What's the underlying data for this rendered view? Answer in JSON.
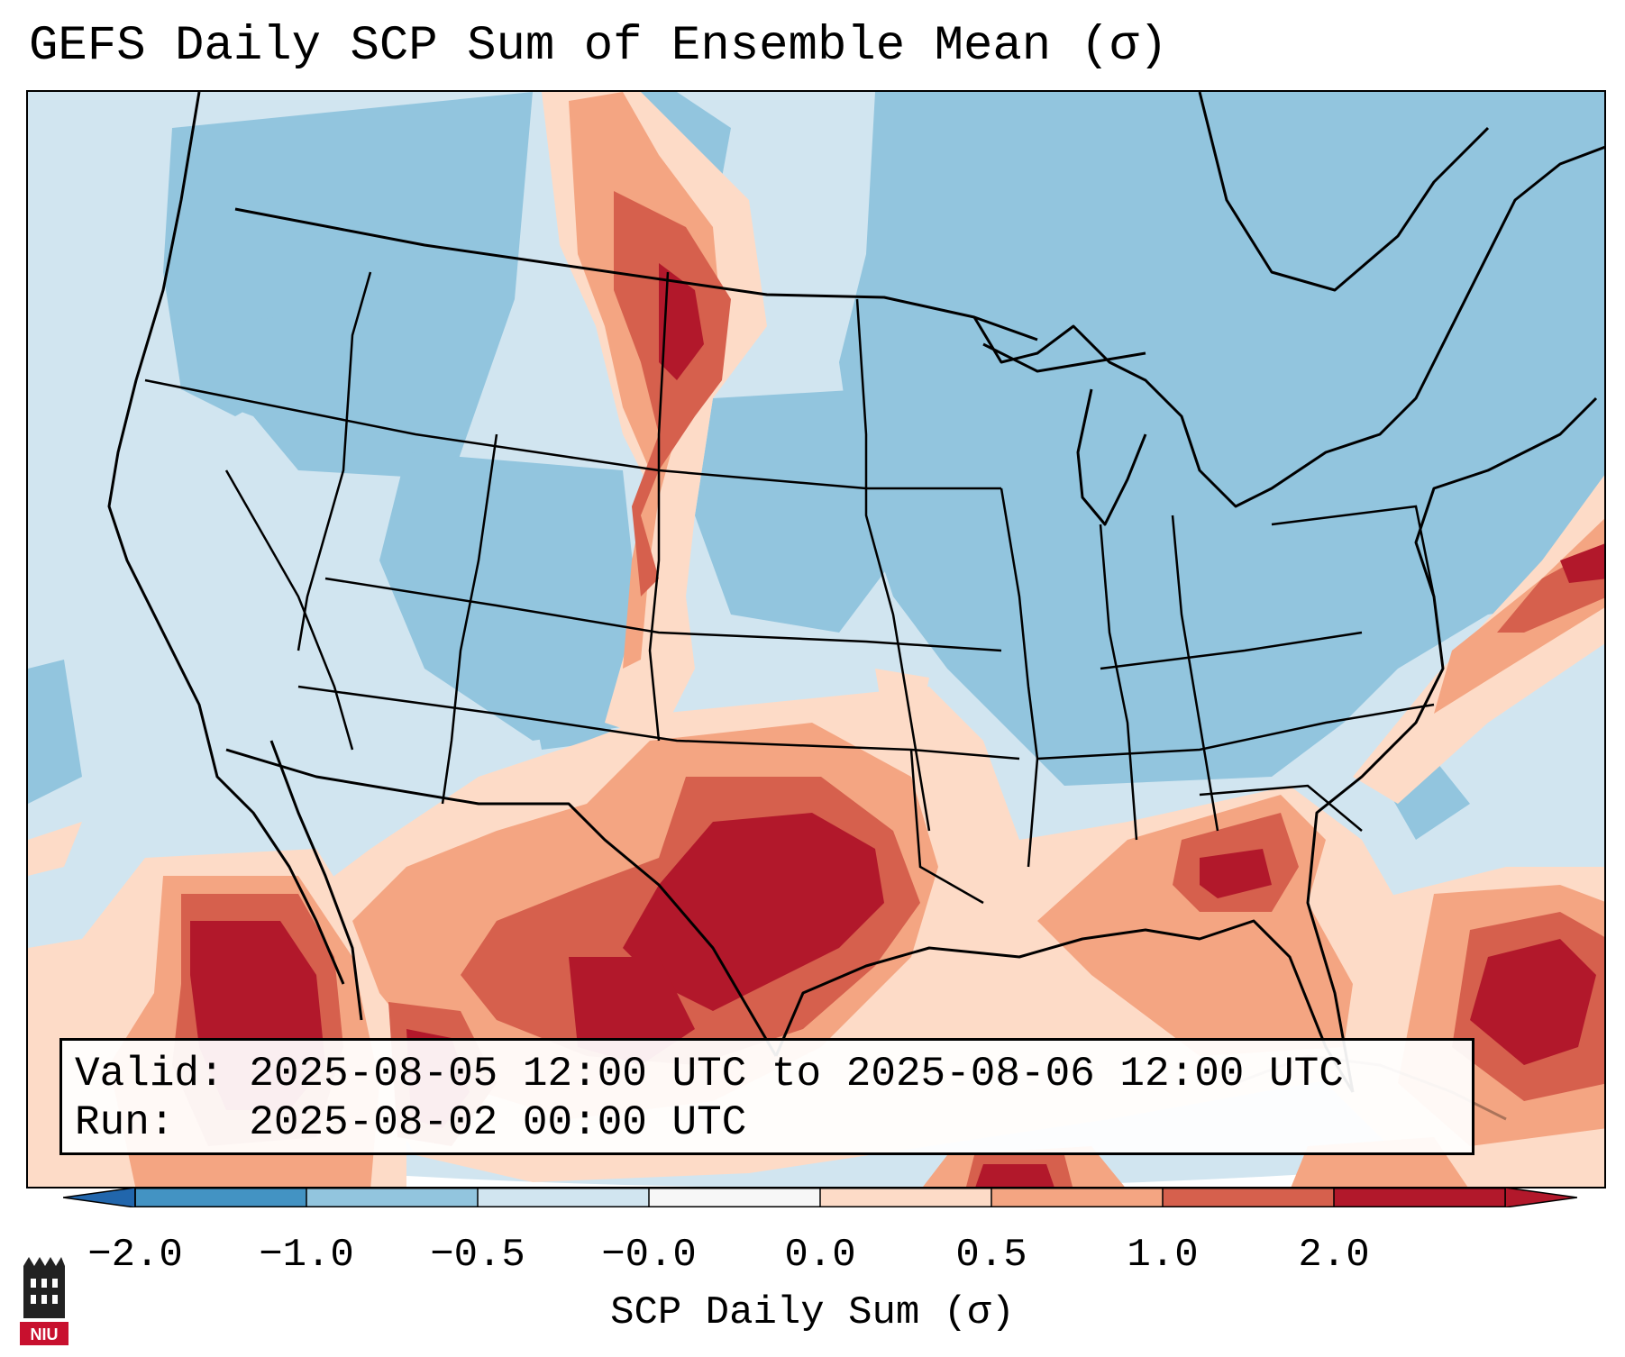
{
  "title": "GEFS Daily SCP Sum of Ensemble Mean (σ)",
  "info": {
    "valid": "Valid: 2025-08-05 12:00 UTC to 2025-08-06 12:00 UTC",
    "run": "Run:   2025-08-02 00:00 UTC"
  },
  "colorbar": {
    "label": "SCP Daily Sum (σ)",
    "ticks": [
      "−2.0",
      "−1.0",
      "−0.5",
      "−0.0",
      "0.0",
      "0.5",
      "1.0",
      "2.0"
    ],
    "colors": [
      "#4393c3",
      "#92c5de",
      "#d1e5f0",
      "#f7f7f7",
      "#fddbc7",
      "#f4a582",
      "#d6604d",
      "#b2182b"
    ],
    "extend": "both"
  },
  "logo": {
    "text": "NIU"
  }
}
